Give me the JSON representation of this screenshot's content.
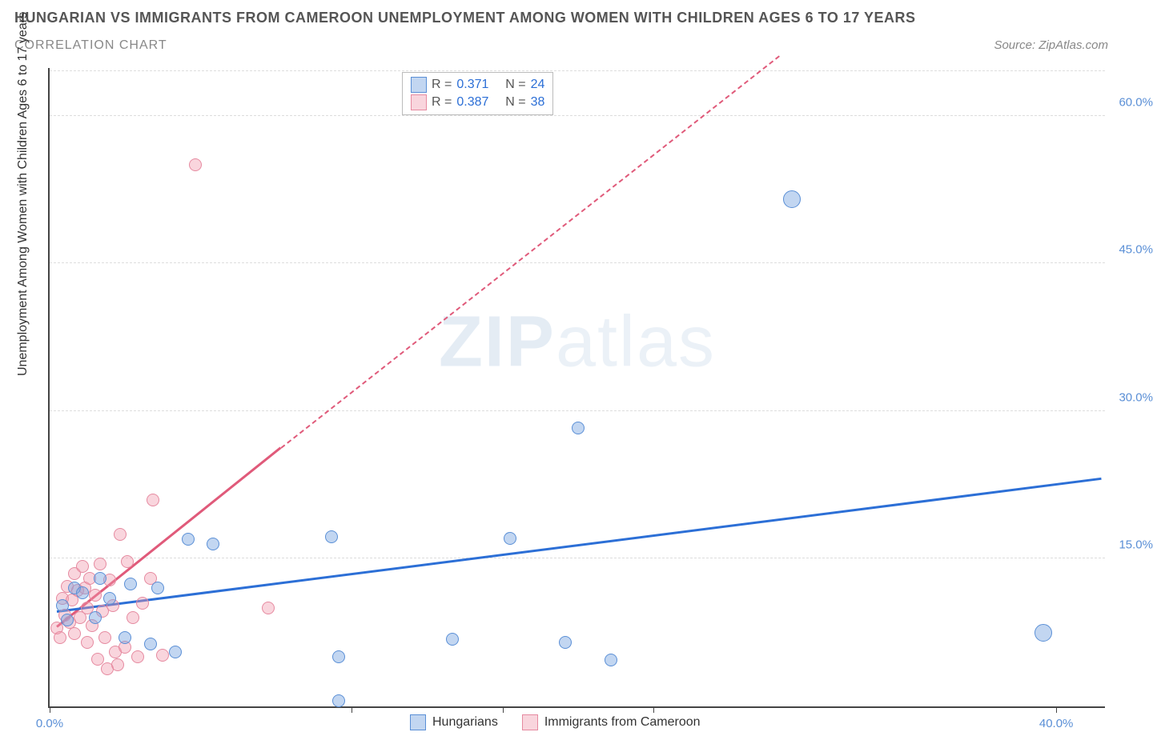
{
  "title_line1": "HUNGARIAN VS IMMIGRANTS FROM CAMEROON UNEMPLOYMENT AMONG WOMEN WITH CHILDREN AGES 6 TO 17 YEARS",
  "title_line2": "CORRELATION CHART",
  "source_text": "Source: ZipAtlas.com",
  "yaxis_title": "Unemployment Among Women with Children Ages 6 to 17 years",
  "watermark_bold": "ZIP",
  "watermark_thin": "atlas",
  "colors": {
    "series_a_fill": "rgba(120,165,225,0.45)",
    "series_a_stroke": "#5a8fd6",
    "series_a_line": "#2c6fd6",
    "series_b_fill": "rgba(240,150,170,0.40)",
    "series_b_stroke": "#e68aa0",
    "series_b_line": "#e05a7a",
    "ytick_color": "#5a8fd6",
    "xtick0_color": "#5a8fd6",
    "xtick1_color": "#5a8fd6",
    "grid": "#dddddd",
    "text_gray": "#555555",
    "value_blue": "#2c6fd6"
  },
  "marker_radius": 8,
  "marker_radius_large": 11,
  "x_axis": {
    "min": 0,
    "max": 42,
    "ticks": [
      {
        "v": 0,
        "label": "0.0%"
      },
      {
        "v": 40,
        "label": "40.0%"
      }
    ]
  },
  "y_axis": {
    "min": 0,
    "max": 65,
    "ticks": [
      15,
      30,
      45,
      60
    ],
    "tick_labels": [
      "15.0%",
      "30.0%",
      "45.0%",
      "60.0%"
    ]
  },
  "series_a": {
    "name": "Hungarians",
    "R": "0.371",
    "N": "24",
    "trend": {
      "x1": 0.3,
      "y1": 9.5,
      "x2": 41.8,
      "y2": 23.0
    },
    "points": [
      {
        "x": 0.5,
        "y": 10.2
      },
      {
        "x": 0.7,
        "y": 8.8
      },
      {
        "x": 1.0,
        "y": 12.0
      },
      {
        "x": 1.3,
        "y": 11.5
      },
      {
        "x": 1.8,
        "y": 9.0
      },
      {
        "x": 2.0,
        "y": 13.0
      },
      {
        "x": 2.4,
        "y": 11.0
      },
      {
        "x": 3.0,
        "y": 7.0
      },
      {
        "x": 3.2,
        "y": 12.4
      },
      {
        "x": 4.0,
        "y": 6.3
      },
      {
        "x": 4.3,
        "y": 12.0
      },
      {
        "x": 5.0,
        "y": 5.5
      },
      {
        "x": 5.5,
        "y": 17.0
      },
      {
        "x": 6.5,
        "y": 16.5
      },
      {
        "x": 11.2,
        "y": 17.2
      },
      {
        "x": 11.5,
        "y": 5.0
      },
      {
        "x": 11.5,
        "y": 0.6
      },
      {
        "x": 16.0,
        "y": 6.8
      },
      {
        "x": 18.3,
        "y": 17.1
      },
      {
        "x": 20.5,
        "y": 6.5
      },
      {
        "x": 21.0,
        "y": 28.3
      },
      {
        "x": 22.3,
        "y": 4.7
      },
      {
        "x": 29.5,
        "y": 51.5,
        "large": true
      },
      {
        "x": 39.5,
        "y": 7.5,
        "large": true
      }
    ]
  },
  "series_b": {
    "name": "Immigrants from Cameroon",
    "R": "0.387",
    "N": "38",
    "trend_solid": {
      "x1": 0.3,
      "y1": 8.0,
      "x2": 9.2,
      "y2": 26.2
    },
    "trend_dashed": {
      "x1": 9.2,
      "y1": 26.2,
      "x2": 29.0,
      "y2": 66.0
    },
    "points": [
      {
        "x": 0.3,
        "y": 8.0
      },
      {
        "x": 0.4,
        "y": 7.0
      },
      {
        "x": 0.5,
        "y": 11.0
      },
      {
        "x": 0.6,
        "y": 9.3
      },
      {
        "x": 0.7,
        "y": 12.2
      },
      {
        "x": 0.8,
        "y": 8.5
      },
      {
        "x": 0.9,
        "y": 10.8
      },
      {
        "x": 1.0,
        "y": 7.4
      },
      {
        "x": 1.0,
        "y": 13.5
      },
      {
        "x": 1.1,
        "y": 11.8
      },
      {
        "x": 1.2,
        "y": 9.0
      },
      {
        "x": 1.3,
        "y": 14.2
      },
      {
        "x": 1.4,
        "y": 12.0
      },
      {
        "x": 1.5,
        "y": 6.5
      },
      {
        "x": 1.5,
        "y": 10.0
      },
      {
        "x": 1.6,
        "y": 13.0
      },
      {
        "x": 1.7,
        "y": 8.2
      },
      {
        "x": 1.8,
        "y": 11.3
      },
      {
        "x": 1.9,
        "y": 4.8
      },
      {
        "x": 2.0,
        "y": 14.5
      },
      {
        "x": 2.1,
        "y": 9.7
      },
      {
        "x": 2.2,
        "y": 7.0
      },
      {
        "x": 2.3,
        "y": 3.8
      },
      {
        "x": 2.4,
        "y": 12.8
      },
      {
        "x": 2.5,
        "y": 10.2
      },
      {
        "x": 2.6,
        "y": 5.5
      },
      {
        "x": 2.7,
        "y": 4.2
      },
      {
        "x": 2.8,
        "y": 17.5
      },
      {
        "x": 3.0,
        "y": 6.0
      },
      {
        "x": 3.1,
        "y": 14.7
      },
      {
        "x": 3.3,
        "y": 9.0
      },
      {
        "x": 3.5,
        "y": 5.0
      },
      {
        "x": 3.7,
        "y": 10.5
      },
      {
        "x": 4.0,
        "y": 13.0
      },
      {
        "x": 4.1,
        "y": 21.0
      },
      {
        "x": 4.5,
        "y": 5.2
      },
      {
        "x": 5.8,
        "y": 55.0
      },
      {
        "x": 8.7,
        "y": 10.0
      }
    ]
  },
  "stats_box": {
    "r_label": "R =",
    "n_label": "N ="
  },
  "legend": {
    "a": "Hungarians",
    "b": "Immigrants from Cameroon"
  }
}
